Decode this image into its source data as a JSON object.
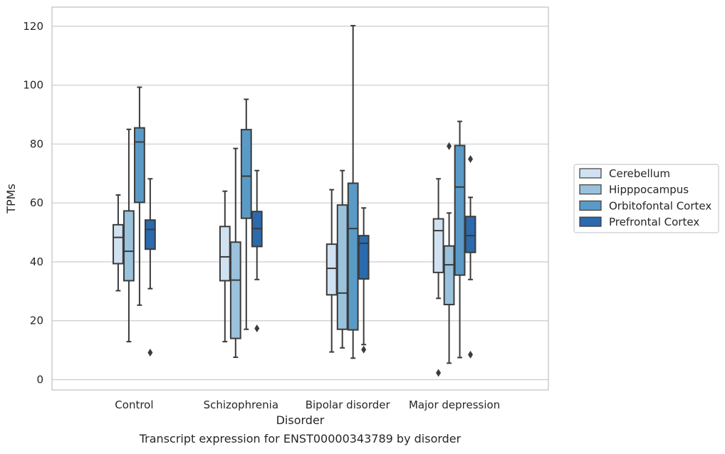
{
  "chart_data": {
    "type": "box",
    "title": "",
    "xlabel": "Disorder",
    "ylabel": "TPMs",
    "caption": "Transcript expression for ENST00000343789 by disorder",
    "ylim": [
      -3.5,
      126.5
    ],
    "yticks": [
      0,
      20,
      40,
      60,
      80,
      100,
      120
    ],
    "grid": "horizontal",
    "legend_position": "right",
    "categories": [
      "Control",
      "Schizophrenia",
      "Bipolar disorder",
      "Major depression"
    ],
    "series": [
      {
        "name": "Cerebellum",
        "color": "#d0e1f2",
        "boxes": [
          {
            "whisker_low": 30.2,
            "q1": 39.4,
            "median": 48.3,
            "q3": 52.6,
            "whisker_high": 62.7,
            "outliers": []
          },
          {
            "whisker_low": 12.9,
            "q1": 33.6,
            "median": 41.7,
            "q3": 52.0,
            "whisker_high": 64.0,
            "outliers": []
          },
          {
            "whisker_low": 9.4,
            "q1": 28.8,
            "median": 37.8,
            "q3": 46.0,
            "whisker_high": 64.5,
            "outliers": []
          },
          {
            "whisker_low": 27.6,
            "q1": 36.4,
            "median": 50.6,
            "q3": 54.6,
            "whisker_high": 68.2,
            "outliers": [
              2.3
            ]
          }
        ]
      },
      {
        "name": "Hipppocampus",
        "color": "#9ac2dc",
        "boxes": [
          {
            "whisker_low": 12.9,
            "q1": 33.6,
            "median": 43.6,
            "q3": 57.3,
            "whisker_high": 85.0,
            "outliers": []
          },
          {
            "whisker_low": 7.6,
            "q1": 14.0,
            "median": 33.8,
            "q3": 46.7,
            "whisker_high": 78.5,
            "outliers": []
          },
          {
            "whisker_low": 10.8,
            "q1": 17.1,
            "median": 29.4,
            "q3": 59.3,
            "whisker_high": 71.0,
            "outliers": []
          },
          {
            "whisker_low": 5.6,
            "q1": 25.5,
            "median": 39.0,
            "q3": 45.4,
            "whisker_high": 56.6,
            "outliers": [
              79.3
            ]
          }
        ]
      },
      {
        "name": "Orbitofontal Cortex",
        "color": "#5a9ac6",
        "boxes": [
          {
            "whisker_low": 25.3,
            "q1": 60.2,
            "median": 80.7,
            "q3": 85.5,
            "whisker_high": 99.3,
            "outliers": []
          },
          {
            "whisker_low": 17.1,
            "q1": 54.8,
            "median": 69.1,
            "q3": 84.9,
            "whisker_high": 95.2,
            "outliers": []
          },
          {
            "whisker_low": 7.3,
            "q1": 16.9,
            "median": 51.3,
            "q3": 66.7,
            "whisker_high": 120.2,
            "outliers": []
          },
          {
            "whisker_low": 7.5,
            "q1": 35.5,
            "median": 65.4,
            "q3": 79.5,
            "whisker_high": 87.7,
            "outliers": []
          }
        ]
      },
      {
        "name": "Prefrontal Cortex",
        "color": "#2a6aad",
        "boxes": [
          {
            "whisker_low": 30.9,
            "q1": 44.3,
            "median": 51.0,
            "q3": 54.2,
            "whisker_high": 68.2,
            "outliers": [
              9.2
            ]
          },
          {
            "whisker_low": 34.0,
            "q1": 45.2,
            "median": 51.3,
            "q3": 57.1,
            "whisker_high": 71.0,
            "outliers": [
              17.4
            ]
          },
          {
            "whisker_low": 11.9,
            "q1": 34.2,
            "median": 46.3,
            "q3": 48.9,
            "whisker_high": 58.3,
            "outliers": [
              10.2
            ]
          },
          {
            "whisker_low": 34.0,
            "q1": 43.2,
            "median": 48.9,
            "q3": 55.4,
            "whisker_high": 61.9,
            "outliers": [
              8.5,
              74.9
            ]
          }
        ]
      }
    ]
  }
}
